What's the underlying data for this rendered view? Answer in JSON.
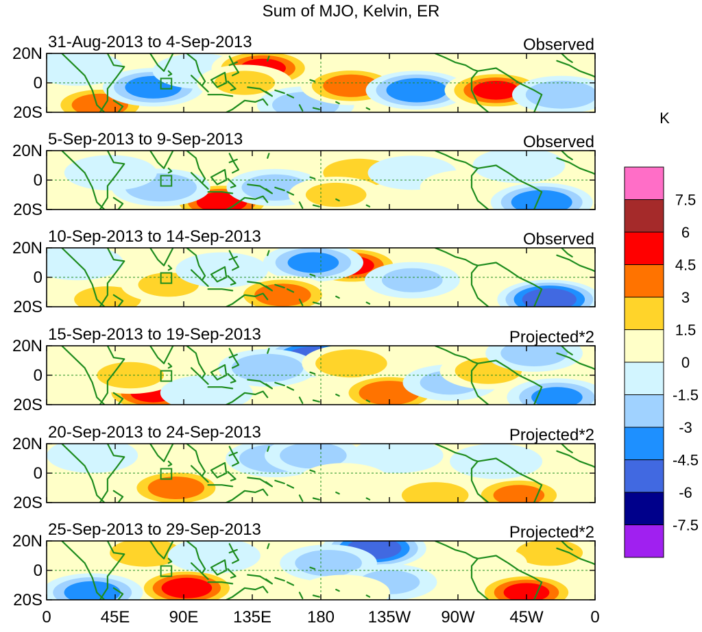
{
  "chart_data": {
    "type": "heatmap",
    "title": "Sum of MJO, Kelvin, ER",
    "x_ticks": [
      "0",
      "45E",
      "90E",
      "135E",
      "180",
      "135W",
      "90W",
      "45W",
      "0"
    ],
    "x_tick_values": [
      0,
      45,
      90,
      135,
      180,
      225,
      270,
      315,
      360
    ],
    "y_ticks": [
      "20N",
      "0",
      "20S"
    ],
    "y_tick_values": [
      20,
      0,
      -20
    ],
    "xlim": [
      0,
      360
    ],
    "ylim": [
      -20,
      20
    ],
    "colorbar": {
      "unit": "K",
      "levels": [
        7.5,
        6,
        4.5,
        3,
        1.5,
        0,
        -1.5,
        -3,
        -4.5,
        -6,
        -7.5
      ],
      "level_labels": [
        "7.5",
        "6",
        "4.5",
        "3",
        "1.5",
        "0",
        "-1.5",
        "-3",
        "-4.5",
        "-6",
        "-7.5"
      ],
      "colors": [
        "#ff6ec7",
        "#a52a2a",
        "#ff0000",
        "#ff7300",
        "#ffd42a",
        "#ffffc8",
        "#d2f5ff",
        "#a0d2ff",
        "#1e90ff",
        "#4169e1",
        "#00008b",
        "#a020f0"
      ]
    },
    "panels": [
      {
        "date_range": "31-Aug-2013 to 4-Sep-2013",
        "kind": "Observed",
        "anomalies": [
          {
            "lon": 35,
            "lat": -15,
            "value": 4.5
          },
          {
            "lon": 70,
            "lat": -3,
            "value": -4.5
          },
          {
            "lon": 100,
            "lat": 8,
            "value": -2
          },
          {
            "lon": 142,
            "lat": 10,
            "value": 5.5
          },
          {
            "lon": 130,
            "lat": 0,
            "value": 2.5
          },
          {
            "lon": 170,
            "lat": -15,
            "value": -3
          },
          {
            "lon": 200,
            "lat": -2,
            "value": 4.5
          },
          {
            "lon": 243,
            "lat": -5,
            "value": -5
          },
          {
            "lon": 295,
            "lat": -5,
            "value": 5.5
          },
          {
            "lon": 338,
            "lat": -8,
            "value": -3.5
          },
          {
            "lon": 20,
            "lat": 10,
            "value": -2
          }
        ]
      },
      {
        "date_range": "5-Sep-2013 to 9-Sep-2013",
        "kind": "Observed",
        "anomalies": [
          {
            "lon": 115,
            "lat": -15,
            "value": 6
          },
          {
            "lon": 75,
            "lat": -5,
            "value": -3.5
          },
          {
            "lon": 42,
            "lat": 5,
            "value": -2
          },
          {
            "lon": 150,
            "lat": -5,
            "value": -3
          },
          {
            "lon": 205,
            "lat": 5,
            "value": 3.5
          },
          {
            "lon": 190,
            "lat": -10,
            "value": 2.5
          },
          {
            "lon": 240,
            "lat": 5,
            "value": -1.5
          },
          {
            "lon": 275,
            "lat": -5,
            "value": 1.8
          },
          {
            "lon": 325,
            "lat": -15,
            "value": -5
          },
          {
            "lon": 310,
            "lat": 10,
            "value": -2
          }
        ]
      },
      {
        "date_range": "10-Sep-2013 to 14-Sep-2013",
        "kind": "Observed",
        "anomalies": [
          {
            "lon": 200,
            "lat": 8,
            "value": 5.5
          },
          {
            "lon": 175,
            "lat": 10,
            "value": -4
          },
          {
            "lon": 155,
            "lat": -12,
            "value": 4.5
          },
          {
            "lon": 40,
            "lat": -15,
            "value": 3
          },
          {
            "lon": 80,
            "lat": -5,
            "value": 2.5
          },
          {
            "lon": 115,
            "lat": 5,
            "value": -2
          },
          {
            "lon": 240,
            "lat": -2,
            "value": -2.5
          },
          {
            "lon": 330,
            "lat": -15,
            "value": -6.5
          },
          {
            "lon": 300,
            "lat": 8,
            "value": 2
          },
          {
            "lon": 20,
            "lat": 10,
            "value": -2
          }
        ]
      },
      {
        "date_range": "15-Sep-2013 to 19-Sep-2013",
        "kind": "Projected*2",
        "anomalies": [
          {
            "lon": 70,
            "lat": -12,
            "value": 5.5
          },
          {
            "lon": 55,
            "lat": 0,
            "value": 3
          },
          {
            "lon": 175,
            "lat": 12,
            "value": -6.5
          },
          {
            "lon": 145,
            "lat": 5,
            "value": -3.5
          },
          {
            "lon": 200,
            "lat": 8,
            "value": 3.5
          },
          {
            "lon": 225,
            "lat": -12,
            "value": 5
          },
          {
            "lon": 265,
            "lat": -5,
            "value": -2.5
          },
          {
            "lon": 290,
            "lat": 3,
            "value": 3
          },
          {
            "lon": 320,
            "lat": 15,
            "value": -3
          },
          {
            "lon": 335,
            "lat": -15,
            "value": -4
          },
          {
            "lon": 105,
            "lat": -12,
            "value": -2
          }
        ]
      },
      {
        "date_range": "20-Sep-2013 to 24-Sep-2013",
        "kind": "Projected*2",
        "anomalies": [
          {
            "lon": 85,
            "lat": -10,
            "value": 4.5
          },
          {
            "lon": 60,
            "lat": 10,
            "value": 2
          },
          {
            "lon": 150,
            "lat": 10,
            "value": -3.5
          },
          {
            "lon": 175,
            "lat": 12,
            "value": -3
          },
          {
            "lon": 230,
            "lat": 12,
            "value": -2
          },
          {
            "lon": 255,
            "lat": -15,
            "value": 3
          },
          {
            "lon": 310,
            "lat": -15,
            "value": 4
          },
          {
            "lon": 295,
            "lat": 8,
            "value": -2
          },
          {
            "lon": 30,
            "lat": 12,
            "value": -1.8
          },
          {
            "lon": 195,
            "lat": -5,
            "value": 1.8
          }
        ]
      },
      {
        "date_range": "25-Sep-2013 to 29-Sep-2013",
        "kind": "Projected*2",
        "anomalies": [
          {
            "lon": 92,
            "lat": -12,
            "value": 6
          },
          {
            "lon": 65,
            "lat": 12,
            "value": 3.5
          },
          {
            "lon": 30,
            "lat": -15,
            "value": -4.5
          },
          {
            "lon": 110,
            "lat": 10,
            "value": -2
          },
          {
            "lon": 215,
            "lat": 15,
            "value": -6.5
          },
          {
            "lon": 185,
            "lat": 5,
            "value": -3
          },
          {
            "lon": 225,
            "lat": -8,
            "value": -2.5
          },
          {
            "lon": 195,
            "lat": -15,
            "value": 2
          },
          {
            "lon": 315,
            "lat": -15,
            "value": 5.5
          },
          {
            "lon": 330,
            "lat": 12,
            "value": 3
          },
          {
            "lon": 285,
            "lat": 5,
            "value": 2
          }
        ]
      }
    ]
  }
}
